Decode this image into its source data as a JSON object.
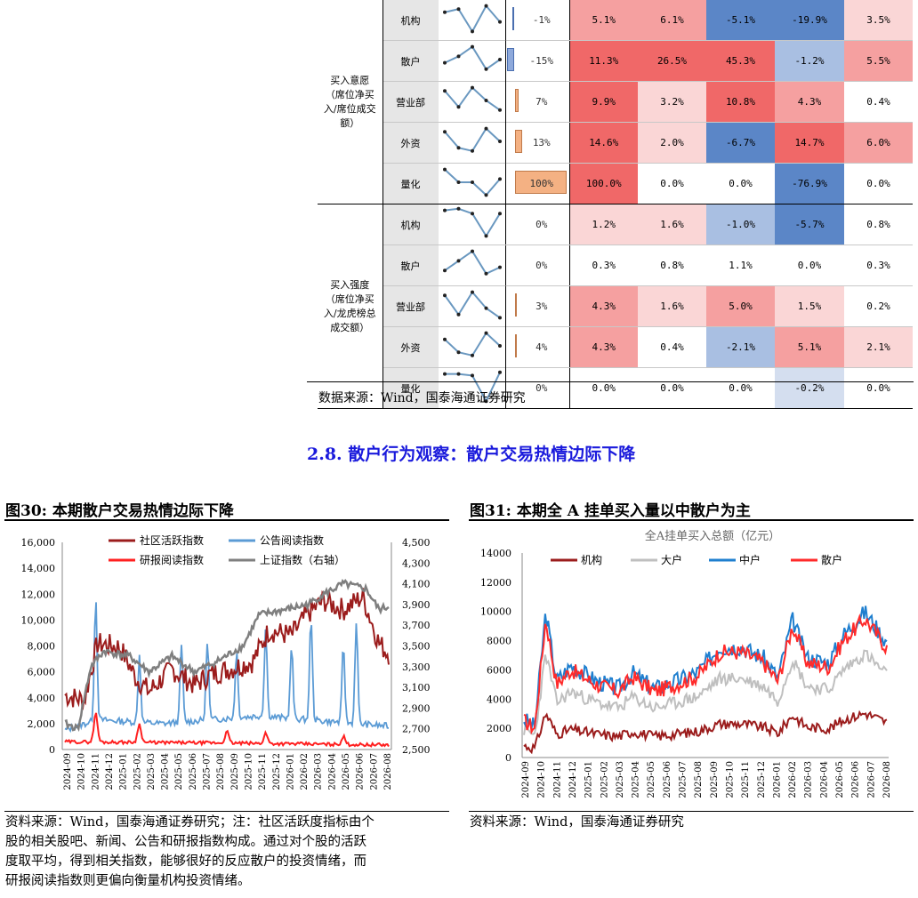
{
  "table": {
    "groups": [
      {
        "label_lines": [
          "买入意愿",
          "（席位净买",
          "入/席位成交",
          "额）"
        ],
        "rows": [
          {
            "name": "机构",
            "bar_pct": "-1%",
            "bar_val": -1,
            "cells": [
              "5.1%",
              "6.1%",
              "-5.1%",
              "-19.9%",
              "3.5%"
            ],
            "spark": [
              0.3,
              0.2,
              0.9,
              0.1,
              0.6
            ]
          },
          {
            "name": "散户",
            "bar_pct": "-15%",
            "bar_val": -15,
            "cells": [
              "11.3%",
              "26.5%",
              "45.3%",
              "-1.2%",
              "5.5%"
            ],
            "spark": [
              0.6,
              0.4,
              0.1,
              0.8,
              0.5
            ]
          },
          {
            "name": "营业部",
            "bar_pct": "7%",
            "bar_val": 7,
            "cells": [
              "9.9%",
              "3.2%",
              "10.8%",
              "4.3%",
              "0.4%"
            ],
            "spark": [
              0.2,
              0.7,
              0.1,
              0.5,
              0.8
            ]
          },
          {
            "name": "外资",
            "bar_pct": "13%",
            "bar_val": 13,
            "cells": [
              "14.6%",
              "2.0%",
              "-6.7%",
              "14.7%",
              "6.0%"
            ],
            "spark": [
              0.2,
              0.7,
              0.8,
              0.1,
              0.5
            ]
          },
          {
            "name": "量化",
            "bar_pct": "100%",
            "bar_val": 100,
            "cells": [
              "100.0%",
              "0.0%",
              "0.0%",
              "-76.9%",
              "0.0%"
            ],
            "spark": [
              0.1,
              0.5,
              0.5,
              0.9,
              0.4
            ]
          }
        ]
      },
      {
        "label_lines": [
          "买入强度",
          "（席位净买",
          "入/龙虎榜总",
          "成交额）"
        ],
        "rows": [
          {
            "name": "机构",
            "bar_pct": "0%",
            "bar_val": 0,
            "cells": [
              "1.2%",
              "1.6%",
              "-1.0%",
              "-5.7%",
              "0.8%"
            ],
            "spark": [
              0.1,
              0.05,
              0.2,
              0.9,
              0.2
            ]
          },
          {
            "name": "散户",
            "bar_pct": "0%",
            "bar_val": 0,
            "cells": [
              "0.3%",
              "0.8%",
              "1.1%",
              "0.0%",
              "0.3%"
            ],
            "spark": [
              0.7,
              0.4,
              0.1,
              0.8,
              0.6
            ]
          },
          {
            "name": "营业部",
            "bar_pct": "3%",
            "bar_val": 3,
            "cells": [
              "4.3%",
              "1.6%",
              "5.0%",
              "1.5%",
              "0.2%"
            ],
            "spark": [
              0.2,
              0.8,
              0.1,
              0.6,
              0.9
            ]
          },
          {
            "name": "外资",
            "bar_pct": "4%",
            "bar_val": 4,
            "cells": [
              "4.3%",
              "0.4%",
              "-2.1%",
              "5.1%",
              "2.1%"
            ],
            "spark": [
              0.3,
              0.7,
              0.8,
              0.1,
              0.5
            ]
          },
          {
            "name": "量化",
            "bar_pct": "0%",
            "bar_val": 0,
            "cells": [
              "0.0%",
              "0.0%",
              "0.0%",
              "-0.2%",
              "0.0%"
            ],
            "spark": [
              0.1,
              0.1,
              0.15,
              0.95,
              0.05
            ]
          }
        ]
      }
    ],
    "colors": {
      "pos_strong": "#f06868",
      "pos_mid": "#f5a0a0",
      "pos_light": "#fad6d6",
      "neg_strong": "#5b86c7",
      "neg_mid": "#a9bfe2",
      "neg_light": "#d4deef",
      "neutral": "#ffffff",
      "bar_pos": "#f4b183",
      "bar_neg": "#8ea9db",
      "spark": "#6a98c0"
    }
  },
  "source_top": "数据来源：Wind，国泰海通证券研究",
  "section_title": "2.8. 散户行为观察：散户交易热情边际下降",
  "fig30": {
    "title": "图30:  本期散户交易热情边际下降",
    "y_left_ticks": [
      "16,000",
      "14,000",
      "12,000",
      "10,000",
      "8,000",
      "6,000",
      "4,000",
      "2,000",
      "0"
    ],
    "y_right_ticks": [
      "4,500",
      "4,300",
      "4,100",
      "3,900",
      "3,700",
      "3,500",
      "3,300",
      "3,100",
      "2,900",
      "2,700",
      "2,500"
    ],
    "x_ticks": [
      "2024-09",
      "2024-10",
      "2024-11",
      "2024-12",
      "2025-01",
      "2025-02",
      "2025-03",
      "2025-04",
      "2025-05",
      "2025-06",
      "2025-07",
      "2025-08",
      "2025-09",
      "2025-10",
      "2025-11",
      "2025-12",
      "2026-01",
      "2026-02",
      "2026-03",
      "2026-04",
      "2026-05",
      "2026-06",
      "2026-07",
      "2026-08"
    ],
    "legend": [
      {
        "name": "社区活跃指数",
        "color": "#9b1c1c"
      },
      {
        "name": "公告阅读指数",
        "color": "#5b9bd5"
      },
      {
        "name": "研报阅读指数",
        "color": "#ff2020"
      },
      {
        "name": "上证指数（右轴）",
        "color": "#7f7f7f"
      }
    ],
    "source": "资料来源：Wind，国泰海通证券研究；注：社区活跃度指标由个",
    "note_lines": [
      "股的相关股吧、新闻、公告和研报指数构成。通过对个股的活跃",
      "度取平均，得到相关指数，能够很好的反应散户的投资情绪，而",
      "研报阅读指数则更偏向衡量机构投资情绪。"
    ]
  },
  "fig31": {
    "title": "图31:  本期全 A 挂单买入量以中散户为主",
    "chart_title": "全A挂单买入总额（亿元）",
    "y_ticks": [
      "14000",
      "12000",
      "10000",
      "8000",
      "6000",
      "4000",
      "2000",
      "0"
    ],
    "x_ticks": [
      "2024-09",
      "2024-10",
      "2024-11",
      "2024-12",
      "2025-01",
      "2025-02",
      "2025-03",
      "2025-04",
      "2025-05",
      "2025-06",
      "2025-07",
      "2025-08",
      "2025-09",
      "2025-10",
      "2025-11",
      "2025-12",
      "2026-01",
      "2026-02",
      "2026-03",
      "2026-04",
      "2026-05",
      "2026-06",
      "2026-07",
      "2026-08"
    ],
    "legend": [
      {
        "name": "机构",
        "color": "#9b1c1c"
      },
      {
        "name": "大户",
        "color": "#bfbfbf"
      },
      {
        "name": "中户",
        "color": "#1f7fcf"
      },
      {
        "name": "散户",
        "color": "#ff2a2a"
      }
    ],
    "source": "资料来源：Wind，国泰海通证券研究"
  }
}
